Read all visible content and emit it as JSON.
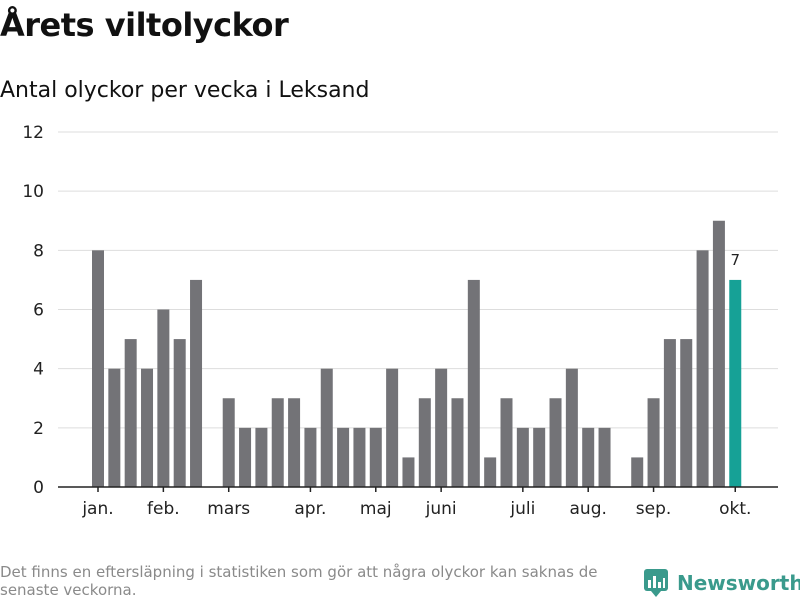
{
  "header": {
    "title": "Årets viltolyckor",
    "subtitle": "Antal olyckor per vecka i Leksand"
  },
  "footer": {
    "note": "Det finns en eftersläpning i statistiken som gör att några olyckor kan saknas de senaste veckorna.",
    "brand": "Newsworthy",
    "brand_icon": "newsworthy-logo-icon"
  },
  "colors": {
    "bar": "#737377",
    "highlight": "#16a196",
    "grid": "#dddddd",
    "axis": "#222222",
    "brand": "#3a9a8c"
  },
  "chart_data": {
    "type": "bar",
    "title": "Årets viltolyckor",
    "subtitle": "Antal olyckor per vecka i Leksand",
    "xlabel": "",
    "ylabel": "",
    "ylim": [
      0,
      12
    ],
    "yticks": [
      0,
      2,
      4,
      6,
      8,
      10,
      12
    ],
    "grid": true,
    "week_values": [
      8,
      4,
      5,
      4,
      6,
      5,
      7,
      0,
      3,
      2,
      2,
      3,
      3,
      2,
      4,
      2,
      2,
      2,
      4,
      1,
      3,
      4,
      3,
      7,
      1,
      3,
      2,
      2,
      3,
      4,
      2,
      2,
      0,
      1,
      3,
      5,
      5,
      8,
      9,
      7
    ],
    "highlight_index": 39,
    "highlight_label": "7",
    "month_labels": [
      {
        "label": "jan.",
        "week_index": 0
      },
      {
        "label": "feb.",
        "week_index": 4
      },
      {
        "label": "mars",
        "week_index": 8
      },
      {
        "label": "apr.",
        "week_index": 13
      },
      {
        "label": "maj",
        "week_index": 17
      },
      {
        "label": "juni",
        "week_index": 21
      },
      {
        "label": "juli",
        "week_index": 26
      },
      {
        "label": "aug.",
        "week_index": 30
      },
      {
        "label": "sep.",
        "week_index": 34
      },
      {
        "label": "okt.",
        "week_index": 39
      }
    ]
  }
}
